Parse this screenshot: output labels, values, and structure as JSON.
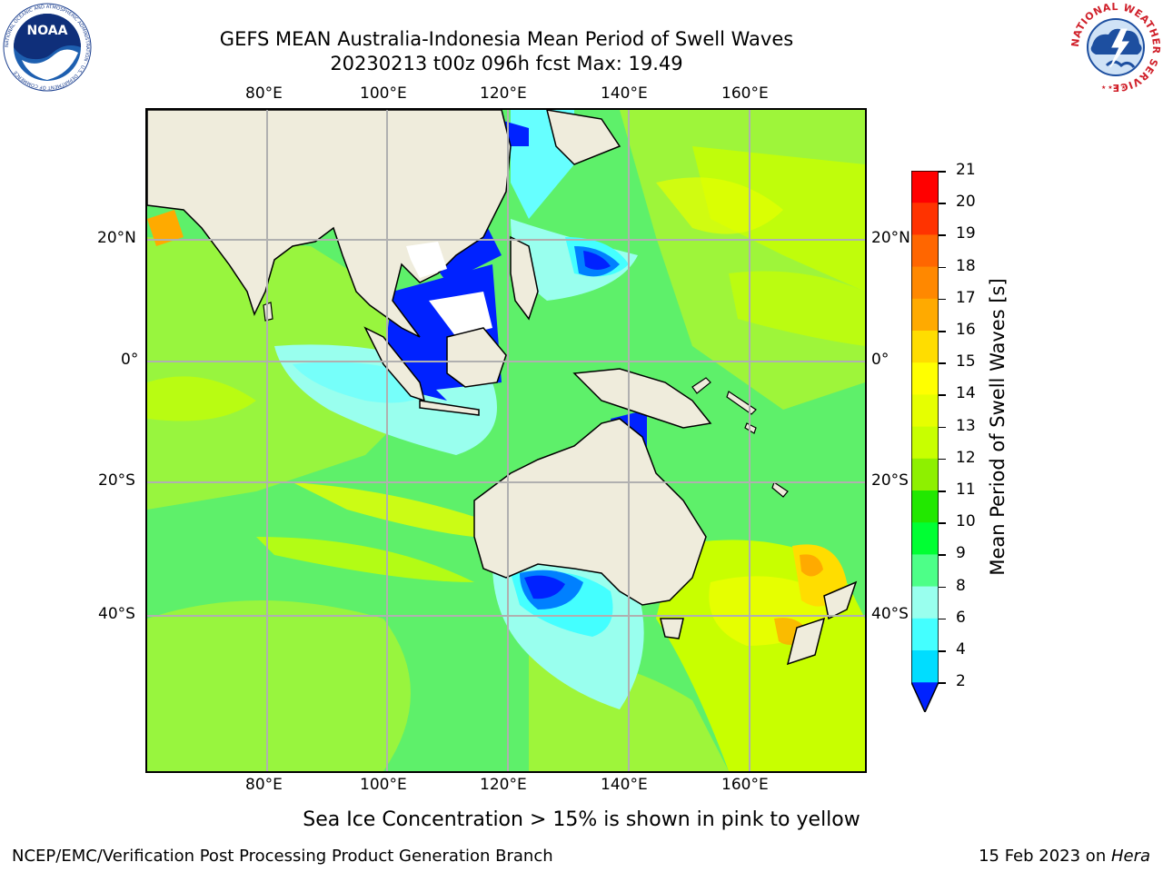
{
  "title_line1": "GEFS MEAN Australia-Indonesia Mean Period of Swell Waves",
  "title_line2": "20230213 t00z 096h fcst   Max: 19.49",
  "logos": {
    "noaa_text": "NOAA",
    "noaa_ring": "NATIONAL OCEANIC AND ATMOSPHERIC ADMINISTRATION · U.S. DEPARTMENT OF COMMERCE",
    "nws_ring": "NATIONAL WEATHER SERVICE"
  },
  "lon_labels": [
    "80°E",
    "100°E",
    "120°E",
    "140°E",
    "160°E"
  ],
  "lat_labels": [
    "20°N",
    "0°",
    "20°S",
    "40°S"
  ],
  "colorbar": {
    "title": "Mean Period of Swell Waves [s]",
    "ticks": [
      "21",
      "20",
      "19",
      "18",
      "17",
      "16",
      "15",
      "14",
      "13",
      "12",
      "11",
      "10",
      "9",
      "8",
      "6",
      "4",
      "2"
    ],
    "colors": [
      "#ff0000",
      "#ff3300",
      "#ff6600",
      "#ff8800",
      "#ffaa00",
      "#ffdd00",
      "#ffff00",
      "#e6ff00",
      "#c8ff00",
      "#8ef000",
      "#22e800",
      "#00ff33",
      "#4dff88",
      "#99ffee",
      "#44ffff",
      "#00ddff",
      "#0080ff",
      "#0022ff"
    ]
  },
  "sea_ice_note": "Sea Ice Concentration > 15% is shown in pink to yellow",
  "credit_left": "NCEP/EMC/Verification Post Processing Product Generation Branch",
  "credit_right_date": "15 Feb 2023 on ",
  "credit_right_host": "Hera"
}
